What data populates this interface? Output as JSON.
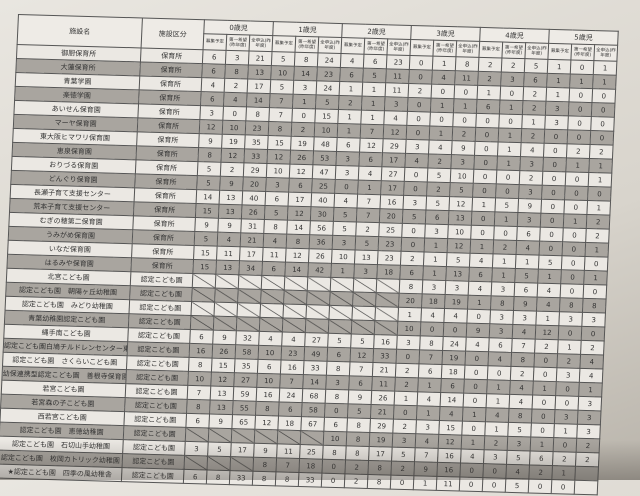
{
  "header": {
    "facility_name": "施設名",
    "facility_type": "施設区分",
    "age_groups": [
      "0歳児",
      "1歳児",
      "2歳児",
      "3歳児",
      "4歳児",
      "5歳児"
    ],
    "sub_columns": [
      "募集予定",
      "第一希望(昨年度)",
      "全申込(昨年度)"
    ]
  },
  "rows": [
    {
      "name": "御厨保育所",
      "type": "保育所",
      "values": [
        "6",
        "3",
        "21",
        "5",
        "8",
        "24",
        "4",
        "6",
        "23",
        "0",
        "1",
        "8",
        "2",
        "2",
        "5",
        "1",
        "0",
        "1"
      ]
    },
    {
      "name": "大蓮保育所",
      "type": "保育所",
      "values": [
        "6",
        "8",
        "13",
        "10",
        "14",
        "23",
        "6",
        "5",
        "11",
        "0",
        "4",
        "11",
        "2",
        "3",
        "6",
        "1",
        "1",
        "1"
      ]
    },
    {
      "name": "青葉学園",
      "type": "保育所",
      "values": [
        "4",
        "2",
        "17",
        "5",
        "3",
        "24",
        "1",
        "1",
        "11",
        "2",
        "0",
        "0",
        "1",
        "0",
        "2",
        "1",
        "0",
        "0"
      ]
    },
    {
      "name": "楽徳学園",
      "type": "保育所",
      "values": [
        "6",
        "4",
        "14",
        "7",
        "1",
        "5",
        "2",
        "1",
        "3",
        "0",
        "1",
        "1",
        "6",
        "1",
        "2",
        "3",
        "0",
        "0"
      ]
    },
    {
      "name": "あいせん保育園",
      "type": "保育所",
      "values": [
        "3",
        "0",
        "8",
        "7",
        "0",
        "15",
        "1",
        "1",
        "4",
        "0",
        "0",
        "0",
        "0",
        "0",
        "1",
        "3",
        "0",
        "0"
      ]
    },
    {
      "name": "マーヤ保育園",
      "type": "保育所",
      "values": [
        "12",
        "10",
        "23",
        "8",
        "2",
        "10",
        "1",
        "7",
        "12",
        "0",
        "1",
        "2",
        "0",
        "1",
        "2",
        "0",
        "0",
        "0"
      ]
    },
    {
      "name": "東大阪ヒマワリ保育園",
      "type": "保育所",
      "values": [
        "9",
        "19",
        "35",
        "15",
        "19",
        "48",
        "6",
        "12",
        "29",
        "3",
        "4",
        "9",
        "0",
        "1",
        "4",
        "0",
        "2",
        "2"
      ]
    },
    {
      "name": "恵泉保育園",
      "type": "保育所",
      "values": [
        "8",
        "12",
        "33",
        "12",
        "26",
        "53",
        "3",
        "6",
        "17",
        "4",
        "2",
        "3",
        "0",
        "1",
        "3",
        "0",
        "1",
        "1"
      ]
    },
    {
      "name": "おりづる保育園",
      "type": "保育所",
      "values": [
        "5",
        "2",
        "29",
        "10",
        "12",
        "47",
        "3",
        "4",
        "27",
        "0",
        "5",
        "10",
        "0",
        "0",
        "2",
        "0",
        "0",
        "1"
      ]
    },
    {
      "name": "どんぐり保育園",
      "type": "保育所",
      "values": [
        "5",
        "9",
        "20",
        "3",
        "6",
        "25",
        "0",
        "1",
        "17",
        "0",
        "2",
        "5",
        "0",
        "0",
        "3",
        "0",
        "0",
        "0"
      ]
    },
    {
      "name": "長瀬子育て支援センター",
      "type": "保育所",
      "values": [
        "14",
        "13",
        "40",
        "6",
        "17",
        "40",
        "4",
        "7",
        "16",
        "3",
        "5",
        "12",
        "1",
        "5",
        "9",
        "0",
        "0",
        "1"
      ]
    },
    {
      "name": "荒本子育て支援センター",
      "type": "保育所",
      "values": [
        "15",
        "13",
        "26",
        "5",
        "12",
        "30",
        "5",
        "7",
        "20",
        "5",
        "6",
        "13",
        "0",
        "1",
        "3",
        "0",
        "1",
        "2"
      ]
    },
    {
      "name": "むぎの穂第二保育園",
      "type": "保育所",
      "values": [
        "9",
        "9",
        "31",
        "8",
        "14",
        "56",
        "5",
        "2",
        "25",
        "0",
        "3",
        "10",
        "0",
        "0",
        "6",
        "0",
        "0",
        "2"
      ]
    },
    {
      "name": "うみがめ保育園",
      "type": "保育所",
      "values": [
        "5",
        "4",
        "21",
        "4",
        "8",
        "36",
        "3",
        "5",
        "23",
        "0",
        "1",
        "12",
        "1",
        "2",
        "4",
        "0",
        "0",
        "1"
      ]
    },
    {
      "name": "いなだ保育園",
      "type": "保育所",
      "values": [
        "15",
        "11",
        "17",
        "11",
        "12",
        "26",
        "10",
        "13",
        "23",
        "2",
        "1",
        "5",
        "4",
        "1",
        "1",
        "5",
        "0",
        "0"
      ]
    },
    {
      "name": "はるみや保育園",
      "type": "保育所",
      "values": [
        "15",
        "13",
        "34",
        "6",
        "14",
        "42",
        "1",
        "3",
        "18",
        "6",
        "1",
        "13",
        "6",
        "1",
        "5",
        "1",
        "0",
        "1"
      ]
    },
    {
      "name": "北宮こども園",
      "type": "認定こども園",
      "values": [
        null,
        null,
        null,
        null,
        null,
        null,
        null,
        null,
        null,
        "8",
        "3",
        "3",
        "4",
        "3",
        "6",
        "4",
        "0",
        "0"
      ]
    },
    {
      "name": "認定こども園　朝陽ヶ丘幼稚園",
      "type": "認定こども園",
      "values": [
        null,
        null,
        null,
        null,
        null,
        null,
        null,
        null,
        null,
        "20",
        "18",
        "19",
        "1",
        "8",
        "9",
        "4",
        "8",
        "8"
      ]
    },
    {
      "name": "認定こども園　みどり幼稚園",
      "type": "認定こども園",
      "values": [
        null,
        null,
        null,
        null,
        null,
        null,
        null,
        null,
        null,
        "1",
        "4",
        "4",
        "0",
        "3",
        "3",
        "1",
        "3",
        "3"
      ]
    },
    {
      "name": "青葉幼稚園認定こども園",
      "type": "認定こども園",
      "values": [
        null,
        null,
        null,
        null,
        null,
        null,
        null,
        null,
        null,
        "10",
        "0",
        "0",
        "9",
        "3",
        "4",
        "12",
        "0",
        "0"
      ]
    },
    {
      "name": "縄手南こども園",
      "type": "認定こども園",
      "values": [
        "6",
        "9",
        "32",
        "4",
        "4",
        "27",
        "5",
        "5",
        "16",
        "3",
        "8",
        "24",
        "4",
        "6",
        "7",
        "2",
        "1",
        "2"
      ]
    },
    {
      "name": "認定こども園白鳩チルドレンセンター東大阪",
      "type": "認定こども園",
      "values": [
        "16",
        "26",
        "58",
        "10",
        "23",
        "49",
        "6",
        "12",
        "33",
        "0",
        "7",
        "19",
        "0",
        "4",
        "8",
        "0",
        "2",
        "4"
      ]
    },
    {
      "name": "認定こども園　さくらいこども園",
      "type": "認定こども園",
      "values": [
        "8",
        "15",
        "35",
        "6",
        "16",
        "33",
        "8",
        "7",
        "21",
        "2",
        "6",
        "18",
        "0",
        "0",
        "2",
        "0",
        "3",
        "4"
      ]
    },
    {
      "name": "幼保連携型認定こども園　善根寺保育園",
      "type": "認定こども園",
      "values": [
        "10",
        "12",
        "27",
        "10",
        "7",
        "14",
        "3",
        "6",
        "11",
        "2",
        "1",
        "6",
        "0",
        "1",
        "4",
        "1",
        "0",
        "1"
      ]
    },
    {
      "name": "若宮こども園",
      "type": "認定こども園",
      "values": [
        "7",
        "13",
        "59",
        "16",
        "24",
        "68",
        "8",
        "9",
        "26",
        "1",
        "4",
        "14",
        "0",
        "1",
        "4",
        "0",
        "0",
        "3"
      ]
    },
    {
      "name": "若宮森の子こども園",
      "type": "認定こども園",
      "values": [
        "8",
        "13",
        "55",
        "8",
        "6",
        "58",
        "0",
        "5",
        "21",
        "0",
        "1",
        "4",
        "1",
        "4",
        "8",
        "0",
        "3",
        "3"
      ]
    },
    {
      "name": "西若宮こども園",
      "type": "認定こども園",
      "values": [
        "6",
        "9",
        "65",
        "12",
        "18",
        "67",
        "6",
        "8",
        "29",
        "2",
        "3",
        "15",
        "0",
        "1",
        "5",
        "0",
        "1",
        "3"
      ]
    },
    {
      "name": "認定こども園　恵徳幼稚園",
      "type": "認定こども園",
      "values": [
        null,
        null,
        null,
        null,
        null,
        null,
        "10",
        "8",
        "19",
        "3",
        "4",
        "12",
        "1",
        "2",
        "3",
        "1",
        "0",
        "2"
      ]
    },
    {
      "name": "認定こども園　石切山手幼稚園",
      "type": "認定こども園",
      "values": [
        "3",
        "5",
        "17",
        "9",
        "11",
        "25",
        "8",
        "8",
        "17",
        "5",
        "7",
        "16",
        "4",
        "3",
        "5",
        "6",
        "2",
        "2"
      ]
    },
    {
      "name": "認定こども園　枚岡カトリック幼稚園",
      "type": "認定こども園",
      "values": [
        null,
        null,
        null,
        "8",
        "7",
        "18",
        "0",
        "2",
        "8",
        "2",
        "9",
        "16",
        "0",
        "0",
        "4",
        "2",
        "1",
        ""
      ]
    },
    {
      "name": "★認定こども園　四季の風幼稚舎",
      "type": "認定こども園",
      "values": [
        "6",
        "8",
        "33",
        "8",
        "8",
        "33",
        "0",
        "2",
        "8",
        "0",
        "1",
        "11",
        "0",
        "0",
        "5",
        "0",
        "0",
        ""
      ]
    }
  ]
}
